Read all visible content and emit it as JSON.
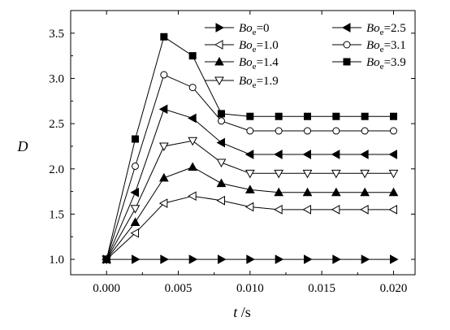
{
  "chart_data": {
    "type": "line",
    "xlabel_var": "t",
    "xlabel_unit": " /s",
    "ylabel": "D",
    "xlim": [
      -0.0025,
      0.0215
    ],
    "ylim": [
      0.83,
      3.75
    ],
    "x_ticks": [
      "0.000",
      "0.005",
      "0.010",
      "0.015",
      "0.020"
    ],
    "x_tick_values": [
      0,
      0.005,
      0.01,
      0.015,
      0.02
    ],
    "y_ticks": [
      "1.0",
      "1.5",
      "2.0",
      "2.5",
      "3.0",
      "3.5"
    ],
    "y_tick_values": [
      1.0,
      1.5,
      2.0,
      2.5,
      3.0,
      3.5
    ],
    "grid": false,
    "legend_position": "top-right",
    "x": [
      0,
      0.002,
      0.004,
      0.006,
      0.008,
      0.01,
      0.012,
      0.014,
      0.016,
      0.018,
      0.02
    ],
    "series": [
      {
        "legend_name": "Bo",
        "legend_sub": "e",
        "legend_value": "=0",
        "marker": "tri-right",
        "fill": "#000",
        "values": [
          1.0,
          1.0,
          1.0,
          1.0,
          1.0,
          1.0,
          1.0,
          1.0,
          1.0,
          1.0,
          1.0
        ]
      },
      {
        "legend_name": "Bo",
        "legend_sub": "e",
        "legend_value": "=1.0",
        "marker": "tri-left",
        "fill": "#fff",
        "values": [
          1.0,
          1.29,
          1.62,
          1.7,
          1.65,
          1.58,
          1.55,
          1.55,
          1.55,
          1.55,
          1.55
        ]
      },
      {
        "legend_name": "Bo",
        "legend_sub": "e",
        "legend_value": "=1.4",
        "marker": "tri-up",
        "fill": "#000",
        "values": [
          1.0,
          1.41,
          1.9,
          2.02,
          1.84,
          1.77,
          1.74,
          1.74,
          1.74,
          1.74,
          1.74
        ]
      },
      {
        "legend_name": "Bo",
        "legend_sub": "e",
        "legend_value": "=1.9",
        "marker": "tri-down",
        "fill": "#fff",
        "values": [
          1.0,
          1.56,
          2.25,
          2.31,
          2.07,
          1.95,
          1.95,
          1.95,
          1.95,
          1.95,
          1.95
        ]
      },
      {
        "legend_name": "Bo",
        "legend_sub": "e",
        "legend_value": "=2.5",
        "marker": "tri-left",
        "fill": "#000",
        "values": [
          1.0,
          1.74,
          2.66,
          2.56,
          2.29,
          2.16,
          2.16,
          2.16,
          2.16,
          2.16,
          2.16
        ]
      },
      {
        "legend_name": "Bo",
        "legend_sub": "e",
        "legend_value": "=3.1",
        "marker": "circle",
        "fill": "#fff",
        "values": [
          1.0,
          2.03,
          3.04,
          2.9,
          2.53,
          2.42,
          2.42,
          2.42,
          2.42,
          2.42,
          2.42
        ]
      },
      {
        "legend_name": "Bo",
        "legend_sub": "e",
        "legend_value": "=3.9",
        "marker": "square",
        "fill": "#000",
        "values": [
          1.0,
          2.33,
          3.46,
          3.25,
          2.61,
          2.58,
          2.58,
          2.58,
          2.58,
          2.58,
          2.58
        ]
      }
    ]
  }
}
